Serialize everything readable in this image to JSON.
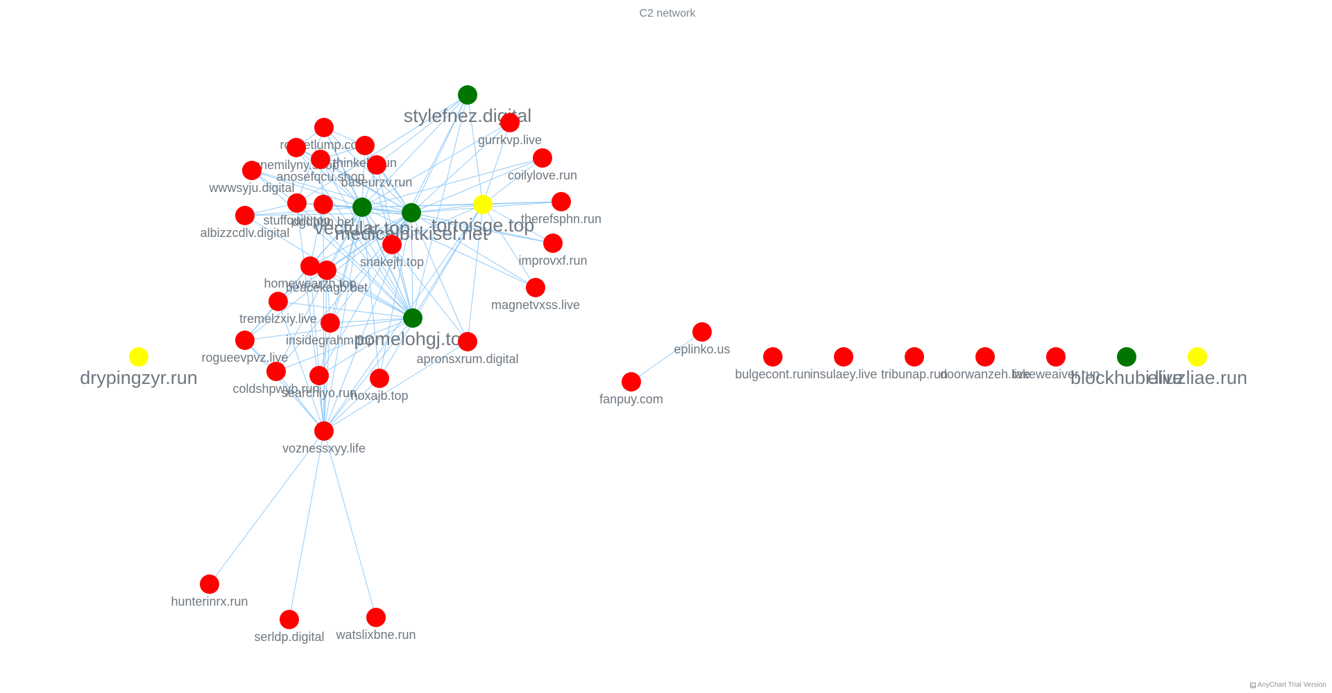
{
  "title": "C2 network",
  "credits": "AnyChart Trial Version",
  "colors": {
    "red": "#ff0000",
    "green": "#007500",
    "yellow": "#ffff00",
    "edge": "#90caf9",
    "label": "#6e7780"
  },
  "nodes": [
    {
      "id": "stylefnez.digital",
      "group": "green",
      "major": true
    },
    {
      "id": "gurrkvp.live",
      "group": "red"
    },
    {
      "id": "rocketlump.com",
      "group": "red"
    },
    {
      "id": "thinkelk.run",
      "group": "red"
    },
    {
      "id": "onemilyny.shop",
      "group": "red"
    },
    {
      "id": "anosefqcu.shop",
      "group": "red"
    },
    {
      "id": "baseurzv.run",
      "group": "red"
    },
    {
      "id": "coilylove.run",
      "group": "red"
    },
    {
      "id": "wwwsyju.digital",
      "group": "red"
    },
    {
      "id": "albizzcdlv.digital",
      "group": "red"
    },
    {
      "id": "stuffquilt.top",
      "group": "red"
    },
    {
      "id": "dgdpbn.bet",
      "group": "red"
    },
    {
      "id": "vectular.top",
      "group": "green",
      "major": true
    },
    {
      "id": "medicalbitkisel.net",
      "group": "green",
      "major": true
    },
    {
      "id": "tortoisge.top",
      "group": "yellow",
      "major": true
    },
    {
      "id": "therefsphn.run",
      "group": "red"
    },
    {
      "id": "snakejh.top",
      "group": "red"
    },
    {
      "id": "improvxf.run",
      "group": "red"
    },
    {
      "id": "homewearzh.top",
      "group": "red"
    },
    {
      "id": "beacekagb.bet",
      "group": "red"
    },
    {
      "id": "magnetvxss.live",
      "group": "red"
    },
    {
      "id": "tremelzxiy.live",
      "group": "red"
    },
    {
      "id": "insidegrahm.top",
      "group": "red"
    },
    {
      "id": "pomelohgj.top",
      "group": "green",
      "major": true
    },
    {
      "id": "rogueevpvz.live",
      "group": "red"
    },
    {
      "id": "apronsxrum.digital",
      "group": "red"
    },
    {
      "id": "coldshpwyb.run",
      "group": "red"
    },
    {
      "id": "searchiyo.run",
      "group": "red"
    },
    {
      "id": "hoxajb.top",
      "group": "red"
    },
    {
      "id": "voznessxyy.life",
      "group": "red"
    },
    {
      "id": "hunterinrx.run",
      "group": "red"
    },
    {
      "id": "serldp.digital",
      "group": "red"
    },
    {
      "id": "watslixbne.run",
      "group": "red"
    },
    {
      "id": "drypingzyr.run",
      "group": "yellow",
      "major": true
    },
    {
      "id": "eplinko.us",
      "group": "red"
    },
    {
      "id": "fanpuy.com",
      "group": "red"
    },
    {
      "id": "bulgecont.run",
      "group": "red"
    },
    {
      "id": "insulaey.live",
      "group": "red"
    },
    {
      "id": "tribunap.run",
      "group": "red"
    },
    {
      "id": "doorwanzeh.live",
      "group": "red"
    },
    {
      "id": "takeweaiver.run",
      "group": "red"
    },
    {
      "id": "blockhubi.live",
      "group": "green",
      "major": true
    },
    {
      "id": "eliuzliae.run",
      "group": "yellow",
      "major": true
    }
  ],
  "edges": [
    [
      "voznessxyy.life",
      "hunterinrx.run"
    ],
    [
      "voznessxyy.life",
      "serldp.digital"
    ],
    [
      "voznessxyy.life",
      "watslixbne.run"
    ],
    [
      "eplinko.us",
      "fanpuy.com"
    ],
    [
      "stylefnez.digital",
      "vectular.top"
    ],
    [
      "stylefnez.digital",
      "medicalbitkisel.net"
    ],
    [
      "stylefnez.digital",
      "tortoisge.top"
    ],
    [
      "stylefnez.digital",
      "snakejh.top"
    ],
    [
      "stylefnez.digital",
      "pomelohgj.top"
    ],
    [
      "stylefnez.digital",
      "stuffquilt.top"
    ],
    [
      "stylefnez.digital",
      "baseurzv.run"
    ],
    [
      "gurrkvp.live",
      "medicalbitkisel.net"
    ],
    [
      "gurrkvp.live",
      "tortoisge.top"
    ],
    [
      "gurrkvp.live",
      "vectular.top"
    ],
    [
      "coilylove.run",
      "tortoisge.top"
    ],
    [
      "coilylove.run",
      "medicalbitkisel.net"
    ],
    [
      "coilylove.run",
      "vectular.top"
    ],
    [
      "therefsphn.run",
      "tortoisge.top"
    ],
    [
      "therefsphn.run",
      "medicalbitkisel.net"
    ],
    [
      "therefsphn.run",
      "vectular.top"
    ],
    [
      "improvxf.run",
      "tortoisge.top"
    ],
    [
      "improvxf.run",
      "medicalbitkisel.net"
    ],
    [
      "improvxf.run",
      "vectular.top"
    ],
    [
      "magnetvxss.live",
      "medicalbitkisel.net"
    ],
    [
      "magnetvxss.live",
      "vectular.top"
    ],
    [
      "magnetvxss.live",
      "tortoisge.top"
    ],
    [
      "apronsxrum.digital",
      "tortoisge.top"
    ],
    [
      "apronsxrum.digital",
      "medicalbitkisel.net"
    ],
    [
      "apronsxrum.digital",
      "vectular.top"
    ],
    [
      "hoxajb.top",
      "medicalbitkisel.net"
    ],
    [
      "hoxajb.top",
      "vectular.top"
    ],
    [
      "hoxajb.top",
      "tortoisge.top"
    ],
    [
      "rocketlump.com",
      "vectular.top"
    ],
    [
      "rocketlump.com",
      "medicalbitkisel.net"
    ],
    [
      "rocketlump.com",
      "pomelohgj.top"
    ],
    [
      "rocketlump.com",
      "thinkelk.run"
    ],
    [
      "rocketlump.com",
      "onemilyny.shop"
    ],
    [
      "rocketlump.com",
      "stuffquilt.top"
    ],
    [
      "thinkelk.run",
      "vectular.top"
    ],
    [
      "thinkelk.run",
      "medicalbitkisel.net"
    ],
    [
      "thinkelk.run",
      "pomelohgj.top"
    ],
    [
      "thinkelk.run",
      "anosefqcu.shop"
    ],
    [
      "onemilyny.shop",
      "vectular.top"
    ],
    [
      "onemilyny.shop",
      "medicalbitkisel.net"
    ],
    [
      "onemilyny.shop",
      "pomelohgj.top"
    ],
    [
      "onemilyny.shop",
      "anosefqcu.shop"
    ],
    [
      "anosefqcu.shop",
      "vectular.top"
    ],
    [
      "anosefqcu.shop",
      "medicalbitkisel.net"
    ],
    [
      "anosefqcu.shop",
      "pomelohgj.top"
    ],
    [
      "anosefqcu.shop",
      "dgdpbn.bet"
    ],
    [
      "baseurzv.run",
      "vectular.top"
    ],
    [
      "baseurzv.run",
      "medicalbitkisel.net"
    ],
    [
      "baseurzv.run",
      "pomelohgj.top"
    ],
    [
      "baseurzv.run",
      "anosefqcu.shop"
    ],
    [
      "wwwsyju.digital",
      "vectular.top"
    ],
    [
      "wwwsyju.digital",
      "medicalbitkisel.net"
    ],
    [
      "wwwsyju.digital",
      "pomelohgj.top"
    ],
    [
      "wwwsyju.digital",
      "stuffquilt.top"
    ],
    [
      "albizzcdlv.digital",
      "vectular.top"
    ],
    [
      "albizzcdlv.digital",
      "medicalbitkisel.net"
    ],
    [
      "albizzcdlv.digital",
      "pomelohgj.top"
    ],
    [
      "albizzcdlv.digital",
      "stuffquilt.top"
    ],
    [
      "stuffquilt.top",
      "vectular.top"
    ],
    [
      "stuffquilt.top",
      "medicalbitkisel.net"
    ],
    [
      "stuffquilt.top",
      "pomelohgj.top"
    ],
    [
      "stuffquilt.top",
      "dgdpbn.bet"
    ],
    [
      "dgdpbn.bet",
      "vectular.top"
    ],
    [
      "dgdpbn.bet",
      "medicalbitkisel.net"
    ],
    [
      "dgdpbn.bet",
      "pomelohgj.top"
    ],
    [
      "dgdpbn.bet",
      "homewearzh.top"
    ],
    [
      "snakejh.top",
      "vectular.top"
    ],
    [
      "snakejh.top",
      "medicalbitkisel.net"
    ],
    [
      "snakejh.top",
      "pomelohgj.top"
    ],
    [
      "snakejh.top",
      "tortoisge.top"
    ],
    [
      "homewearzh.top",
      "vectular.top"
    ],
    [
      "homewearzh.top",
      "medicalbitkisel.net"
    ],
    [
      "homewearzh.top",
      "pomelohgj.top"
    ],
    [
      "homewearzh.top",
      "beacekagb.bet"
    ],
    [
      "homewearzh.top",
      "tremelzxiy.live"
    ],
    [
      "beacekagb.bet",
      "vectular.top"
    ],
    [
      "beacekagb.bet",
      "medicalbitkisel.net"
    ],
    [
      "beacekagb.bet",
      "pomelohgj.top"
    ],
    [
      "beacekagb.bet",
      "insidegrahm.top"
    ],
    [
      "tremelzxiy.live",
      "vectular.top"
    ],
    [
      "tremelzxiy.live",
      "medicalbitkisel.net"
    ],
    [
      "tremelzxiy.live",
      "pomelohgj.top"
    ],
    [
      "tremelzxiy.live",
      "rogueevpvz.live"
    ],
    [
      "insidegrahm.top",
      "vectular.top"
    ],
    [
      "insidegrahm.top",
      "medicalbitkisel.net"
    ],
    [
      "insidegrahm.top",
      "pomelohgj.top"
    ],
    [
      "insidegrahm.top",
      "voznessxyy.life"
    ],
    [
      "rogueevpvz.live",
      "vectular.top"
    ],
    [
      "rogueevpvz.live",
      "medicalbitkisel.net"
    ],
    [
      "rogueevpvz.live",
      "pomelohgj.top"
    ],
    [
      "rogueevpvz.live",
      "coldshpwyb.run"
    ],
    [
      "coldshpwyb.run",
      "vectular.top"
    ],
    [
      "coldshpwyb.run",
      "medicalbitkisel.net"
    ],
    [
      "coldshpwyb.run",
      "pomelohgj.top"
    ],
    [
      "coldshpwyb.run",
      "voznessxyy.life"
    ],
    [
      "searchiyo.run",
      "vectular.top"
    ],
    [
      "searchiyo.run",
      "medicalbitkisel.net"
    ],
    [
      "searchiyo.run",
      "pomelohgj.top"
    ],
    [
      "searchiyo.run",
      "voznessxyy.life"
    ],
    [
      "hoxajb.top",
      "voznessxyy.life"
    ],
    [
      "voznessxyy.life",
      "vectular.top"
    ],
    [
      "voznessxyy.life",
      "medicalbitkisel.net"
    ],
    [
      "voznessxyy.life",
      "pomelohgj.top"
    ],
    [
      "voznessxyy.life",
      "stuffquilt.top"
    ],
    [
      "voznessxyy.life",
      "dgdpbn.bet"
    ],
    [
      "voznessxyy.life",
      "homewearzh.top"
    ],
    [
      "voznessxyy.life",
      "beacekagb.bet"
    ],
    [
      "voznessxyy.life",
      "tremelzxiy.live"
    ],
    [
      "voznessxyy.life",
      "rogueevpvz.live"
    ],
    [
      "voznessxyy.life",
      "apronsxrum.digital"
    ],
    [
      "voznessxyy.life",
      "tortoisge.top"
    ],
    [
      "vectular.top",
      "medicalbitkisel.net"
    ],
    [
      "vectular.top",
      "pomelohgj.top"
    ],
    [
      "vectular.top",
      "tortoisge.top"
    ],
    [
      "medicalbitkisel.net",
      "tortoisge.top"
    ],
    [
      "medicalbitkisel.net",
      "pomelohgj.top"
    ],
    [
      "tortoisge.top",
      "pomelohgj.top"
    ]
  ]
}
